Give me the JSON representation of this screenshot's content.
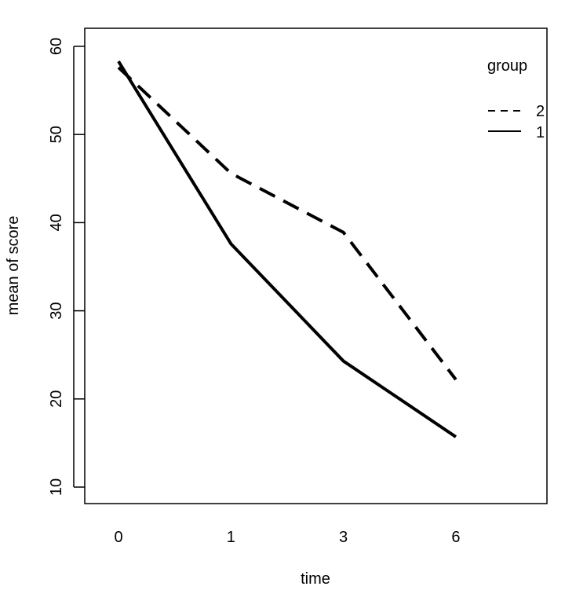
{
  "chart_data": {
    "type": "line",
    "title": "",
    "xlabel": "time",
    "ylabel": "mean of score",
    "categories": [
      "0",
      "1",
      "3",
      "6"
    ],
    "ylim": [
      10,
      60
    ],
    "y_ticks": [
      10,
      20,
      30,
      40,
      50,
      60
    ],
    "grid": false,
    "legend": {
      "title": "group",
      "placement": "top-right",
      "entries": [
        {
          "label": "2",
          "line_style": "dashed"
        },
        {
          "label": "1",
          "line_style": "solid"
        }
      ]
    },
    "series": [
      {
        "name": "1",
        "line_style": "solid",
        "values": [
          58.3,
          37.6,
          24.3,
          15.7
        ]
      },
      {
        "name": "2",
        "line_style": "dashed",
        "values": [
          57.6,
          45.6,
          38.9,
          22.2
        ]
      }
    ],
    "colors": {
      "line": "#000000",
      "axis": "#000000",
      "background": "#ffffff"
    }
  }
}
